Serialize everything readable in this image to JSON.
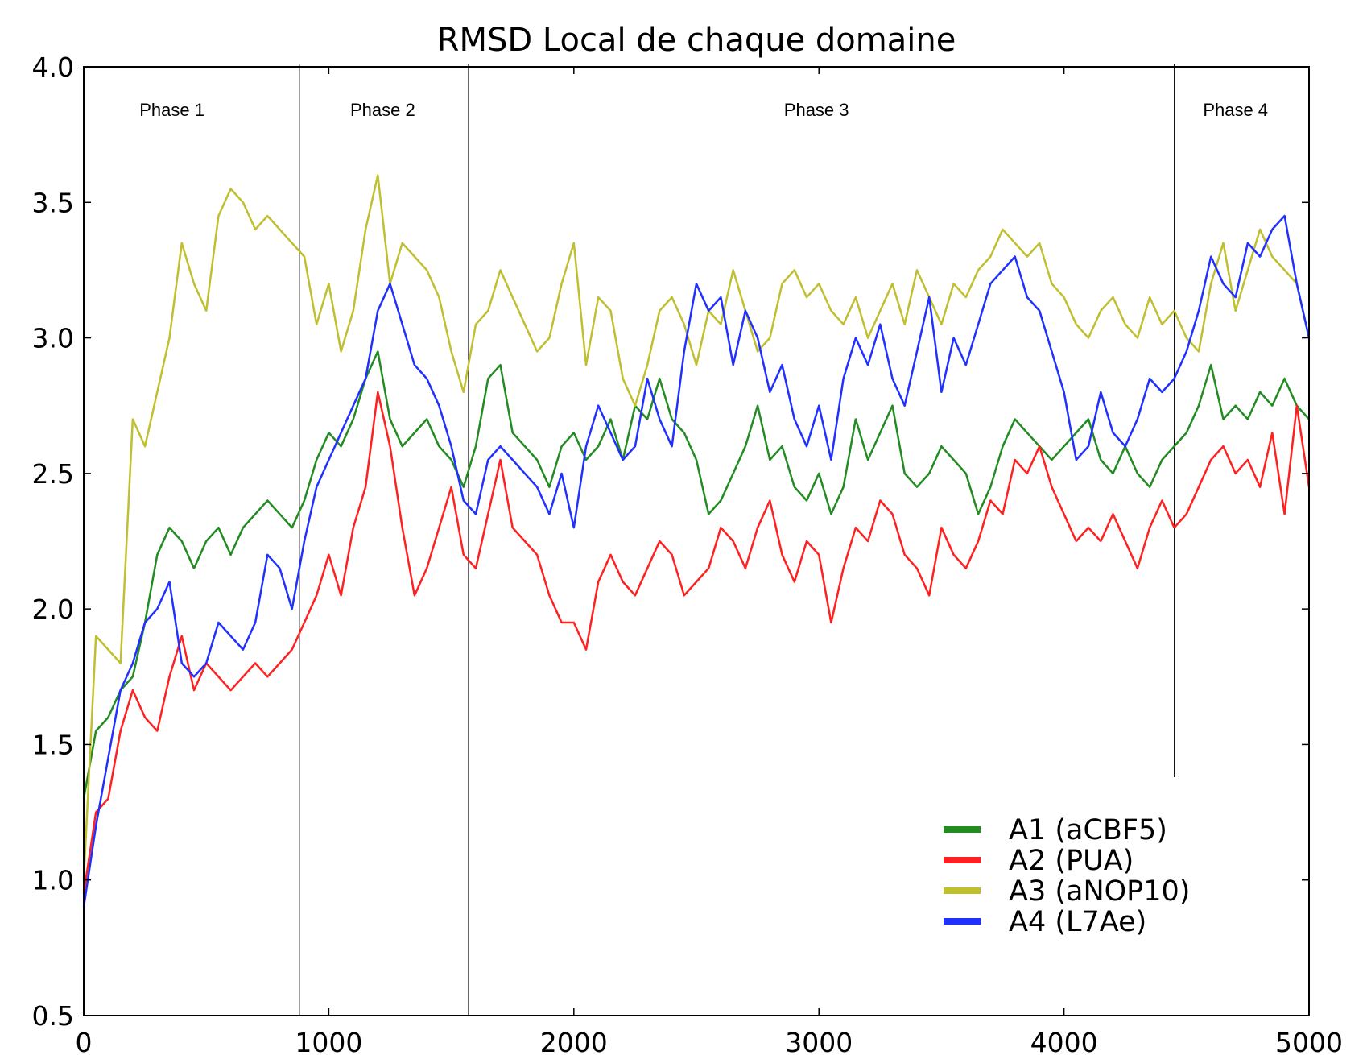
{
  "chart_data": {
    "type": "line",
    "title": "RMSD Local de chaque domaine",
    "xlabel": "",
    "ylabel": "",
    "xlim": [
      0,
      5000
    ],
    "ylim": [
      0.5,
      4.0
    ],
    "xticks": [
      "0",
      "1000",
      "2000",
      "3000",
      "4000",
      "5000"
    ],
    "yticks": [
      "0.5",
      "1.0",
      "1.5",
      "2.0",
      "2.5",
      "3.0",
      "3.5",
      "4.0"
    ],
    "grid": false,
    "legend_position": "bottom-right",
    "phase_boundaries": [
      880,
      1570,
      4450
    ],
    "phases": [
      {
        "label": "Phase 1",
        "center": 360
      },
      {
        "label": "Phase 2",
        "center": 1220
      },
      {
        "label": "Phase 3",
        "center": 2990
      },
      {
        "label": "Phase 4",
        "center": 4700
      }
    ],
    "series": [
      {
        "name": "A1 (aCBF5)",
        "color": "#228b22",
        "x": [
          0,
          50,
          100,
          150,
          200,
          250,
          300,
          350,
          400,
          450,
          500,
          550,
          600,
          650,
          700,
          750,
          800,
          850,
          900,
          950,
          1000,
          1050,
          1100,
          1150,
          1200,
          1250,
          1300,
          1350,
          1400,
          1450,
          1500,
          1550,
          1600,
          1650,
          1700,
          1750,
          1800,
          1850,
          1900,
          1950,
          2000,
          2050,
          2100,
          2150,
          2200,
          2250,
          2300,
          2350,
          2400,
          2450,
          2500,
          2550,
          2600,
          2650,
          2700,
          2750,
          2800,
          2850,
          2900,
          2950,
          3000,
          3050,
          3100,
          3150,
          3200,
          3250,
          3300,
          3350,
          3400,
          3450,
          3500,
          3550,
          3600,
          3650,
          3700,
          3750,
          3800,
          3850,
          3900,
          3950,
          4000,
          4050,
          4100,
          4150,
          4200,
          4250,
          4300,
          4350,
          4400,
          4450,
          4500,
          4550,
          4600,
          4650,
          4700,
          4750,
          4800,
          4850,
          4900,
          4950,
          5000
        ],
        "y": [
          1.3,
          1.55,
          1.6,
          1.7,
          1.75,
          1.95,
          2.2,
          2.3,
          2.25,
          2.15,
          2.25,
          2.3,
          2.2,
          2.3,
          2.35,
          2.4,
          2.35,
          2.3,
          2.4,
          2.55,
          2.65,
          2.6,
          2.7,
          2.85,
          2.95,
          2.7,
          2.6,
          2.65,
          2.7,
          2.6,
          2.55,
          2.45,
          2.6,
          2.85,
          2.9,
          2.65,
          2.6,
          2.55,
          2.45,
          2.6,
          2.65,
          2.55,
          2.6,
          2.7,
          2.55,
          2.75,
          2.7,
          2.85,
          2.7,
          2.65,
          2.55,
          2.35,
          2.4,
          2.5,
          2.6,
          2.75,
          2.55,
          2.6,
          2.45,
          2.4,
          2.5,
          2.35,
          2.45,
          2.7,
          2.55,
          2.65,
          2.75,
          2.5,
          2.45,
          2.5,
          2.6,
          2.55,
          2.5,
          2.35,
          2.45,
          2.6,
          2.7,
          2.65,
          2.6,
          2.55,
          2.6,
          2.65,
          2.7,
          2.55,
          2.5,
          2.6,
          2.5,
          2.45,
          2.55,
          2.6,
          2.65,
          2.75,
          2.9,
          2.7,
          2.75,
          2.7,
          2.8,
          2.75,
          2.85,
          2.75,
          2.7
        ]
      },
      {
        "name": "A2 (PUA)",
        "color": "#ff2020",
        "x": [
          0,
          50,
          100,
          150,
          200,
          250,
          300,
          350,
          400,
          450,
          500,
          550,
          600,
          650,
          700,
          750,
          800,
          850,
          900,
          950,
          1000,
          1050,
          1100,
          1150,
          1200,
          1250,
          1300,
          1350,
          1400,
          1450,
          1500,
          1550,
          1600,
          1650,
          1700,
          1750,
          1800,
          1850,
          1900,
          1950,
          2000,
          2050,
          2100,
          2150,
          2200,
          2250,
          2300,
          2350,
          2400,
          2450,
          2500,
          2550,
          2600,
          2650,
          2700,
          2750,
          2800,
          2850,
          2900,
          2950,
          3000,
          3050,
          3100,
          3150,
          3200,
          3250,
          3300,
          3350,
          3400,
          3450,
          3500,
          3550,
          3600,
          3650,
          3700,
          3750,
          3800,
          3850,
          3900,
          3950,
          4000,
          4050,
          4100,
          4150,
          4200,
          4250,
          4300,
          4350,
          4400,
          4450,
          4500,
          4550,
          4600,
          4650,
          4700,
          4750,
          4800,
          4850,
          4900,
          4950,
          5000
        ],
        "y": [
          0.95,
          1.25,
          1.3,
          1.55,
          1.7,
          1.6,
          1.55,
          1.75,
          1.9,
          1.7,
          1.8,
          1.75,
          1.7,
          1.75,
          1.8,
          1.75,
          1.8,
          1.85,
          1.95,
          2.05,
          2.2,
          2.05,
          2.3,
          2.45,
          2.8,
          2.6,
          2.3,
          2.05,
          2.15,
          2.3,
          2.45,
          2.2,
          2.15,
          2.35,
          2.55,
          2.3,
          2.25,
          2.2,
          2.05,
          1.95,
          1.95,
          1.85,
          2.1,
          2.2,
          2.1,
          2.05,
          2.15,
          2.25,
          2.2,
          2.05,
          2.1,
          2.15,
          2.3,
          2.25,
          2.15,
          2.3,
          2.4,
          2.2,
          2.1,
          2.25,
          2.2,
          1.95,
          2.15,
          2.3,
          2.25,
          2.4,
          2.35,
          2.2,
          2.15,
          2.05,
          2.3,
          2.2,
          2.15,
          2.25,
          2.4,
          2.35,
          2.55,
          2.5,
          2.6,
          2.45,
          2.35,
          2.25,
          2.3,
          2.25,
          2.35,
          2.25,
          2.15,
          2.3,
          2.4,
          2.3,
          2.35,
          2.45,
          2.55,
          2.6,
          2.5,
          2.55,
          2.45,
          2.65,
          2.35,
          2.75,
          2.45
        ]
      },
      {
        "name": "A3 (aNOP10)",
        "color": "#bfbf30",
        "x": [
          0,
          50,
          100,
          150,
          200,
          250,
          300,
          350,
          400,
          450,
          500,
          550,
          600,
          650,
          700,
          750,
          800,
          850,
          900,
          950,
          1000,
          1050,
          1100,
          1150,
          1200,
          1250,
          1300,
          1350,
          1400,
          1450,
          1500,
          1550,
          1600,
          1650,
          1700,
          1750,
          1800,
          1850,
          1900,
          1950,
          2000,
          2050,
          2100,
          2150,
          2200,
          2250,
          2300,
          2350,
          2400,
          2450,
          2500,
          2550,
          2600,
          2650,
          2700,
          2750,
          2800,
          2850,
          2900,
          2950,
          3000,
          3050,
          3100,
          3150,
          3200,
          3250,
          3300,
          3350,
          3400,
          3450,
          3500,
          3550,
          3600,
          3650,
          3700,
          3750,
          3800,
          3850,
          3900,
          3950,
          4000,
          4050,
          4100,
          4150,
          4200,
          4250,
          4300,
          4350,
          4400,
          4450,
          4500,
          4550,
          4600,
          4650,
          4700,
          4750,
          4800,
          4850,
          4900,
          4950,
          5000
        ],
        "y": [
          1.0,
          1.9,
          1.85,
          1.8,
          2.7,
          2.6,
          2.8,
          3.0,
          3.35,
          3.2,
          3.1,
          3.45,
          3.55,
          3.5,
          3.4,
          3.45,
          3.4,
          3.35,
          3.3,
          3.05,
          3.2,
          2.95,
          3.1,
          3.4,
          3.6,
          3.2,
          3.35,
          3.3,
          3.25,
          3.15,
          2.95,
          2.8,
          3.05,
          3.1,
          3.25,
          3.15,
          3.05,
          2.95,
          3.0,
          3.2,
          3.35,
          2.9,
          3.15,
          3.1,
          2.85,
          2.75,
          2.9,
          3.1,
          3.15,
          3.05,
          2.9,
          3.1,
          3.05,
          3.25,
          3.1,
          2.95,
          3.0,
          3.2,
          3.25,
          3.15,
          3.2,
          3.1,
          3.05,
          3.15,
          3.0,
          3.1,
          3.2,
          3.05,
          3.25,
          3.15,
          3.05,
          3.2,
          3.15,
          3.25,
          3.3,
          3.4,
          3.35,
          3.3,
          3.35,
          3.2,
          3.15,
          3.05,
          3.0,
          3.1,
          3.15,
          3.05,
          3.0,
          3.15,
          3.05,
          3.1,
          3.0,
          2.95,
          3.2,
          3.35,
          3.1,
          3.25,
          3.4,
          3.3,
          3.25,
          3.2,
          3.0
        ]
      },
      {
        "name": "A4 (L7Ae)",
        "color": "#1f30ff",
        "x": [
          0,
          50,
          100,
          150,
          200,
          250,
          300,
          350,
          400,
          450,
          500,
          550,
          600,
          650,
          700,
          750,
          800,
          850,
          900,
          950,
          1000,
          1050,
          1100,
          1150,
          1200,
          1250,
          1300,
          1350,
          1400,
          1450,
          1500,
          1550,
          1600,
          1650,
          1700,
          1750,
          1800,
          1850,
          1900,
          1950,
          2000,
          2050,
          2100,
          2150,
          2200,
          2250,
          2300,
          2350,
          2400,
          2450,
          2500,
          2550,
          2600,
          2650,
          2700,
          2750,
          2800,
          2850,
          2900,
          2950,
          3000,
          3050,
          3100,
          3150,
          3200,
          3250,
          3300,
          3350,
          3400,
          3450,
          3500,
          3550,
          3600,
          3650,
          3700,
          3750,
          3800,
          3850,
          3900,
          3950,
          4000,
          4050,
          4100,
          4150,
          4200,
          4250,
          4300,
          4350,
          4400,
          4450,
          4500,
          4550,
          4600,
          4650,
          4700,
          4750,
          4800,
          4850,
          4900,
          4950,
          5000
        ],
        "y": [
          0.9,
          1.2,
          1.45,
          1.7,
          1.8,
          1.95,
          2.0,
          2.1,
          1.8,
          1.75,
          1.8,
          1.95,
          1.9,
          1.85,
          1.95,
          2.2,
          2.15,
          2.0,
          2.25,
          2.45,
          2.55,
          2.65,
          2.75,
          2.85,
          3.1,
          3.2,
          3.05,
          2.9,
          2.85,
          2.75,
          2.6,
          2.4,
          2.35,
          2.55,
          2.6,
          2.55,
          2.5,
          2.45,
          2.35,
          2.5,
          2.3,
          2.6,
          2.75,
          2.65,
          2.55,
          2.6,
          2.85,
          2.7,
          2.6,
          2.95,
          3.2,
          3.1,
          3.15,
          2.9,
          3.1,
          3.0,
          2.8,
          2.9,
          2.7,
          2.6,
          2.75,
          2.55,
          2.85,
          3.0,
          2.9,
          3.05,
          2.85,
          2.75,
          2.95,
          3.15,
          2.8,
          3.0,
          2.9,
          3.05,
          3.2,
          3.25,
          3.3,
          3.15,
          3.1,
          2.95,
          2.8,
          2.55,
          2.6,
          2.8,
          2.65,
          2.6,
          2.7,
          2.85,
          2.8,
          2.85,
          2.95,
          3.1,
          3.3,
          3.2,
          3.15,
          3.35,
          3.3,
          3.4,
          3.45,
          3.2,
          3.0
        ]
      }
    ]
  }
}
